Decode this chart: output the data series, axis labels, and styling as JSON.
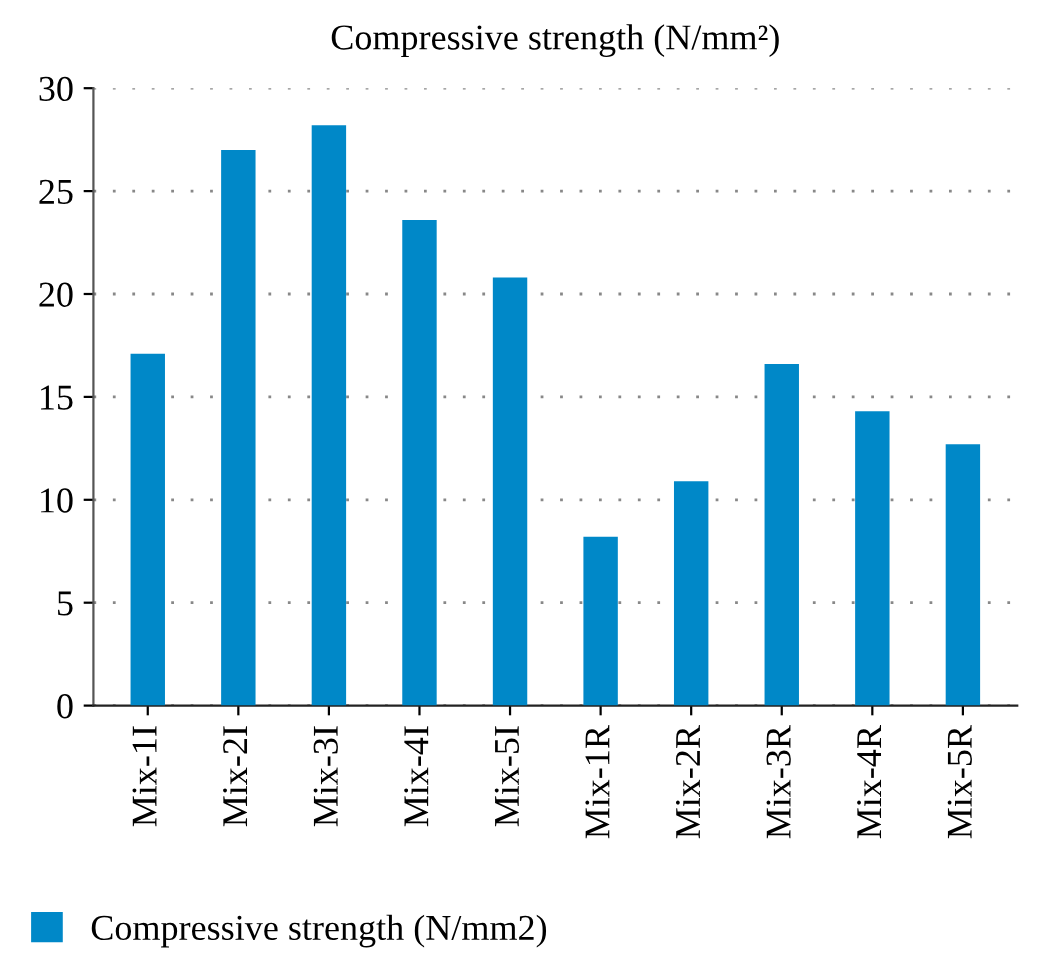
{
  "chart_data": {
    "type": "bar",
    "title": "Compressive strength (N/mm²)",
    "categories": [
      "Mix-1I",
      "Mix-2I",
      "Mix-3I",
      "Mix-4I",
      "Mix-5I",
      "Mix-1R",
      "Mix-2R",
      "Mix-3R",
      "Mix-4R",
      "Mix-5R"
    ],
    "series": [
      {
        "name": "Compressive strength (N/mm2)",
        "color": "#0088c8",
        "values": [
          17.1,
          27.0,
          28.2,
          23.6,
          20.8,
          8.2,
          10.9,
          16.6,
          14.3,
          12.7
        ]
      }
    ],
    "ylim": [
      0,
      30
    ],
    "yticks": [
      0,
      5,
      10,
      15,
      20,
      25,
      30
    ],
    "grid": "y",
    "legend": "bottom left"
  }
}
